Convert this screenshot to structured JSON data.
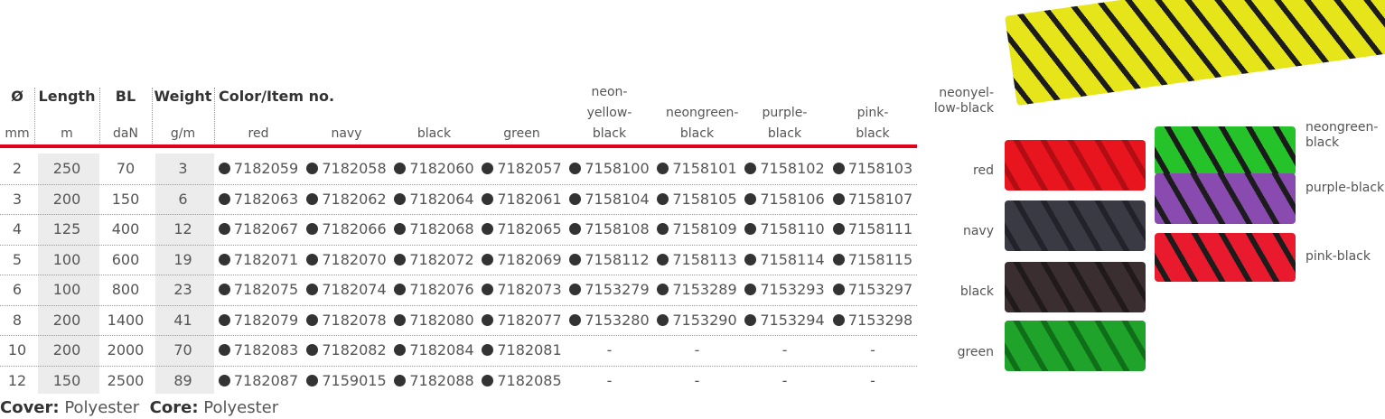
{
  "table": {
    "columns": [
      {
        "label": "Ø",
        "unit": "mm"
      },
      {
        "label": "Length",
        "unit": "m"
      },
      {
        "label": "BL",
        "unit": "daN"
      },
      {
        "label": "Weight",
        "unit": "g/m"
      }
    ],
    "color_group": "Color/Item no.",
    "colors": [
      "red",
      "navy",
      "black",
      "green",
      "neon-yellow-black",
      "neongreen-black",
      "purple-black",
      "pink-black"
    ],
    "rows": [
      [
        2,
        250,
        70,
        3,
        "7182059",
        "7182058",
        "7182060",
        "7182057",
        "7158100",
        "7158101",
        "7158102",
        "7158103"
      ],
      [
        3,
        200,
        150,
        6,
        "7182063",
        "7182062",
        "7182064",
        "7182061",
        "7158104",
        "7158105",
        "7158106",
        "7158107"
      ],
      [
        4,
        125,
        400,
        12,
        "7182067",
        "7182066",
        "7182068",
        "7182065",
        "7158108",
        "7158109",
        "7158110",
        "7158111"
      ],
      [
        5,
        100,
        600,
        19,
        "7182071",
        "7182070",
        "7182072",
        "7182069",
        "7158112",
        "7158113",
        "7158114",
        "7158115"
      ],
      [
        6,
        100,
        800,
        23,
        "7182075",
        "7182074",
        "7182076",
        "7182073",
        "7153279",
        "7153289",
        "7153293",
        "7153297"
      ],
      [
        8,
        200,
        1400,
        41,
        "7182079",
        "7182078",
        "7182080",
        "7182077",
        "7153280",
        "7153290",
        "7153294",
        "7153298"
      ],
      [
        10,
        200,
        2000,
        70,
        "7182083",
        "7182082",
        "7182084",
        "7182081",
        "-",
        "-",
        "-",
        "-"
      ],
      [
        12,
        150,
        2500,
        89,
        "7182087",
        "7159015",
        "7182088",
        "7182085",
        "-",
        "-",
        "-",
        "-"
      ]
    ]
  },
  "footer": {
    "cover_label": "Cover:",
    "cover": "Polyester",
    "core_label": "Core:",
    "core": "Polyester"
  },
  "ropes": [
    "neonyel-low-black",
    "red",
    "navy",
    "black",
    "green",
    "neongreen-black",
    "purple-black",
    "pink-black"
  ]
}
